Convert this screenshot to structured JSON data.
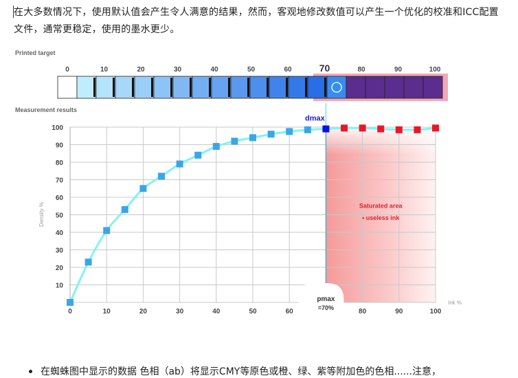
{
  "article": {
    "intro_paragraph": "在大多数情况下，使用默认值会产生令人满意的结果，然而，客观地修改数值可以产生一个优化的校准和ICC配置文件，通常更稳定，使用的墨水更少。",
    "bullet_text": "在蜘蛛图中显示的数据 色相（ab）将显示CMY等原色或橙、绿、紫等附加色的色相......注意，"
  },
  "chart_data": {
    "type": "line",
    "target_label": "Printed target",
    "results_label": "Measurement results",
    "target_ticks": [
      "0",
      "10",
      "20",
      "30",
      "40",
      "50",
      "60",
      "70",
      "80",
      "90",
      "100"
    ],
    "target_highlight": "70",
    "ylabel": "Density %",
    "xlabel": "Ink %",
    "x_ticks": [
      "0",
      "10",
      "20",
      "30",
      "40",
      "50",
      "60",
      "70",
      "80",
      "90",
      "100"
    ],
    "y_ticks": [
      "10",
      "20",
      "30",
      "40",
      "50",
      "60",
      "70",
      "80",
      "90",
      "100"
    ],
    "xlim": [
      0,
      100
    ],
    "ylim": [
      0,
      100
    ],
    "grid": true,
    "series": [
      {
        "x": [
          0,
          5,
          10,
          15,
          20,
          25,
          30,
          35,
          40,
          45,
          50,
          55,
          60,
          65,
          70
        ],
        "y": [
          0,
          23,
          41,
          53,
          65,
          72,
          79,
          84,
          89,
          92,
          94,
          96,
          97.5,
          98.5,
          99
        ]
      },
      {
        "x": [
          75,
          80,
          85,
          90,
          95,
          100
        ],
        "y": [
          99.5,
          99.5,
          99,
          98.5,
          98.5,
          99.5
        ]
      }
    ],
    "dmax_label": "dmax",
    "pmax_label": "pmax",
    "pmax_value": "=70%",
    "saturated_label": "Saturated area",
    "useless_label": "• useless ink",
    "colors": {
      "curve": "#7ff5ee",
      "marker_blue": "#3aa6e8",
      "marker_dmax": "#1010e0",
      "marker_red": "#f01525",
      "saturated_fill": "#f59a9a",
      "annotation_red": "#e8202a",
      "ramp_purple": "#5b2d8e",
      "ramp_border": "#f2a8b8"
    }
  }
}
